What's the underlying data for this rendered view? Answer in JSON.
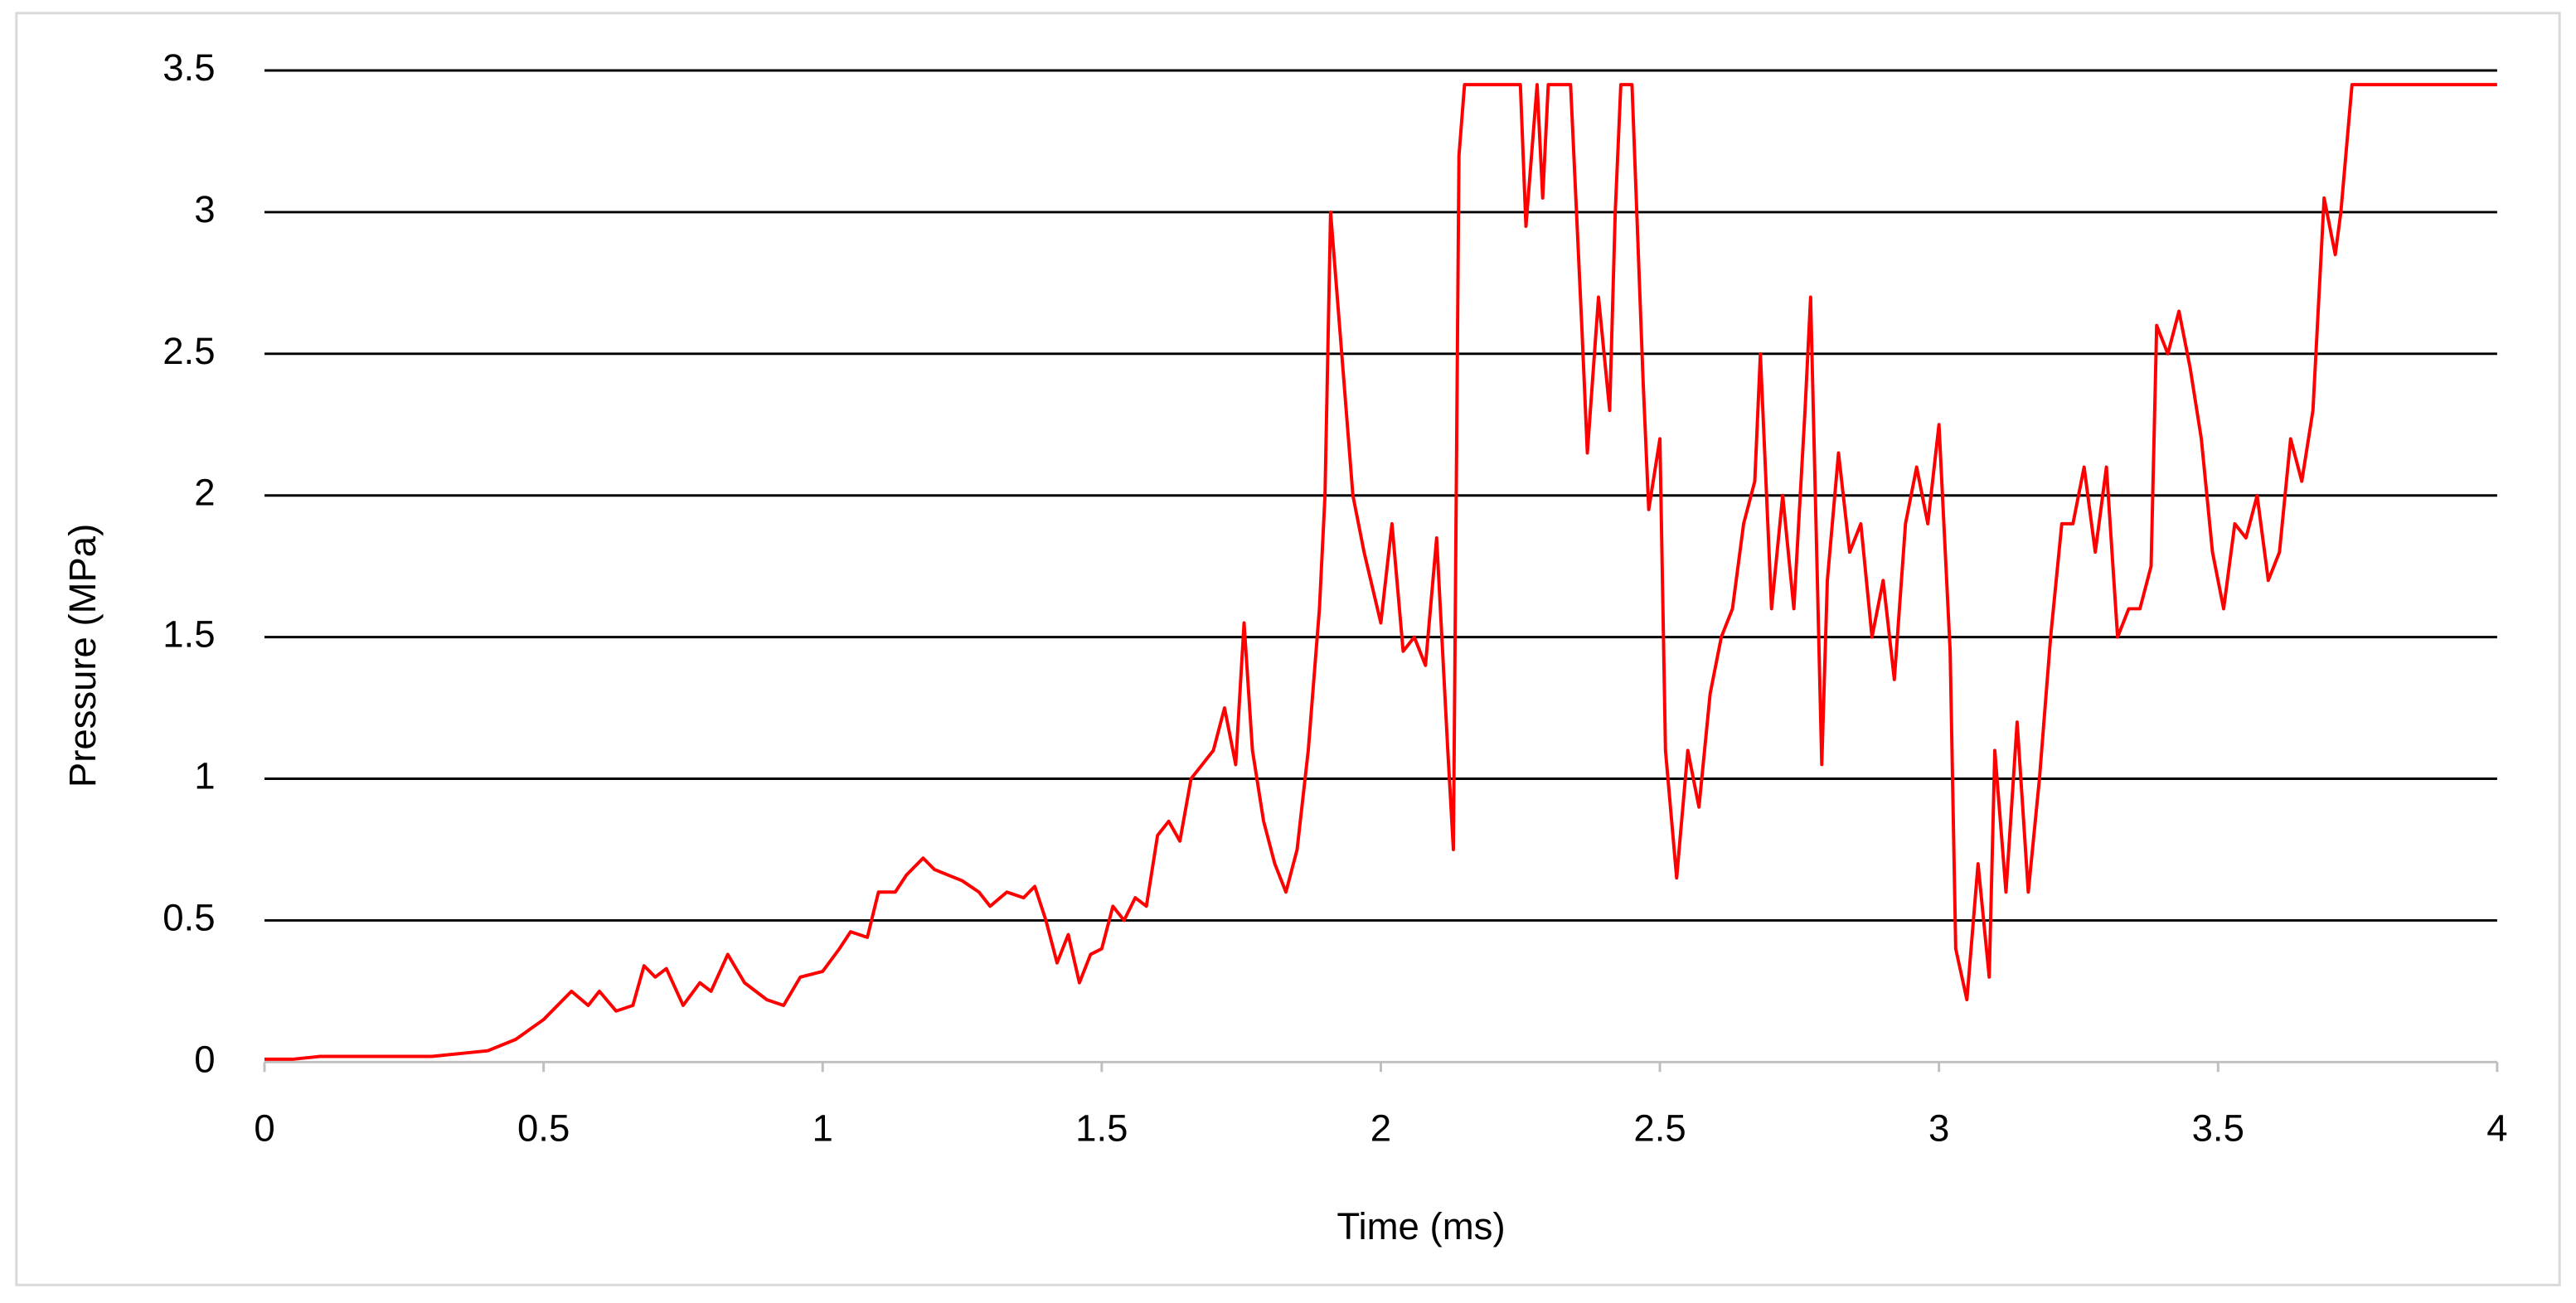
{
  "chart_data": {
    "type": "line",
    "x_label": "Time (ms)",
    "y_label": "Pressure (MPa)",
    "color": "#ff0000",
    "x": [
      0,
      0.05,
      0.1,
      0.2,
      0.3,
      0.35,
      0.4,
      0.45,
      0.5,
      0.55,
      0.58,
      0.6,
      0.63,
      0.66,
      0.68,
      0.7,
      0.72,
      0.75,
      0.78,
      0.8,
      0.83,
      0.86,
      0.9,
      0.93,
      0.96,
      1.0,
      1.03,
      1.05,
      1.08,
      1.1,
      1.13,
      1.15,
      1.18,
      1.2,
      1.25,
      1.28,
      1.3,
      1.33,
      1.36,
      1.38,
      1.4,
      1.42,
      1.44,
      1.46,
      1.48,
      1.5,
      1.52,
      1.54,
      1.56,
      1.58,
      1.6,
      1.62,
      1.64,
      1.66,
      1.68,
      1.7,
      1.72,
      1.74,
      1.755,
      1.77,
      1.79,
      1.81,
      1.83,
      1.85,
      1.87,
      1.89,
      1.9,
      1.91,
      1.93,
      1.95,
      1.97,
      2.0,
      2.02,
      2.04,
      2.06,
      2.08,
      2.1,
      2.12,
      2.13,
      2.14,
      2.15,
      2.25,
      2.26,
      2.28,
      2.29,
      2.3,
      2.34,
      2.36,
      2.37,
      2.39,
      2.41,
      2.42,
      2.43,
      2.45,
      2.47,
      2.48,
      2.5,
      2.51,
      2.53,
      2.55,
      2.57,
      2.59,
      2.61,
      2.63,
      2.65,
      2.67,
      2.68,
      2.7,
      2.72,
      2.74,
      2.76,
      2.77,
      2.79,
      2.8,
      2.82,
      2.84,
      2.86,
      2.88,
      2.9,
      2.92,
      2.94,
      2.96,
      2.98,
      3.0,
      3.02,
      3.03,
      3.05,
      3.07,
      3.09,
      3.1,
      3.12,
      3.14,
      3.16,
      3.18,
      3.2,
      3.22,
      3.24,
      3.26,
      3.28,
      3.3,
      3.32,
      3.34,
      3.36,
      3.38,
      3.39,
      3.41,
      3.43,
      3.45,
      3.47,
      3.49,
      3.51,
      3.53,
      3.55,
      3.57,
      3.59,
      3.61,
      3.63,
      3.65,
      3.67,
      3.69,
      3.71,
      3.72,
      3.74,
      4.0
    ],
    "values": [
      0.01,
      0.01,
      0.02,
      0.02,
      0.02,
      0.03,
      0.04,
      0.08,
      0.15,
      0.25,
      0.2,
      0.25,
      0.18,
      0.2,
      0.34,
      0.3,
      0.33,
      0.2,
      0.28,
      0.25,
      0.38,
      0.28,
      0.22,
      0.2,
      0.3,
      0.32,
      0.4,
      0.46,
      0.44,
      0.6,
      0.6,
      0.66,
      0.72,
      0.68,
      0.64,
      0.6,
      0.55,
      0.6,
      0.58,
      0.62,
      0.5,
      0.35,
      0.45,
      0.28,
      0.38,
      0.4,
      0.55,
      0.5,
      0.58,
      0.55,
      0.8,
      0.85,
      0.78,
      1.0,
      1.05,
      1.1,
      1.25,
      1.05,
      1.55,
      1.1,
      0.85,
      0.7,
      0.6,
      0.75,
      1.1,
      1.6,
      2.0,
      3.0,
      2.5,
      2.0,
      1.8,
      1.55,
      1.9,
      1.45,
      1.5,
      1.4,
      1.85,
      1.1,
      0.75,
      3.2,
      3.45,
      3.45,
      2.95,
      3.45,
      3.05,
      3.45,
      3.45,
      2.6,
      2.15,
      2.7,
      2.3,
      3.0,
      3.45,
      3.45,
      2.4,
      1.95,
      2.2,
      1.1,
      0.65,
      1.1,
      0.9,
      1.3,
      1.5,
      1.6,
      1.9,
      2.05,
      2.5,
      1.6,
      2.0,
      1.6,
      2.3,
      2.7,
      1.05,
      1.7,
      2.15,
      1.8,
      1.9,
      1.5,
      1.7,
      1.35,
      1.9,
      2.1,
      1.9,
      2.25,
      1.45,
      0.4,
      0.22,
      0.7,
      0.3,
      1.1,
      0.6,
      1.2,
      0.6,
      1.0,
      1.5,
      1.9,
      1.9,
      2.1,
      1.8,
      2.1,
      1.5,
      1.6,
      1.6,
      1.75,
      2.6,
      2.5,
      2.65,
      2.45,
      2.2,
      1.8,
      1.6,
      1.9,
      1.85,
      2.0,
      1.7,
      1.8,
      2.2,
      2.05,
      2.3,
      3.05,
      2.85,
      3.0,
      3.45,
      3.45
    ],
    "xlim": [
      0,
      4
    ],
    "xticks": [
      0,
      0.5,
      1,
      1.5,
      2,
      2.5,
      3,
      3.5,
      4
    ],
    "ylim": [
      0,
      3.5
    ],
    "yticks": [
      0,
      0.5,
      1,
      1.5,
      2,
      2.5,
      3,
      3.5
    ],
    "grid": true
  }
}
